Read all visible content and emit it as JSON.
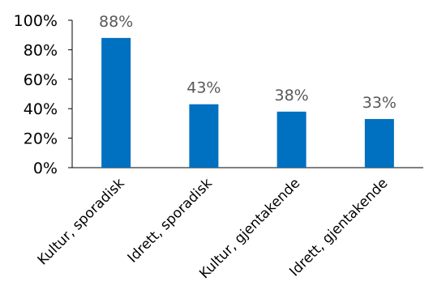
{
  "chart_data": {
    "type": "bar",
    "categories": [
      "Kultur, sporadisk",
      "Idrett, sporadisk",
      "Kultur, gjentakende",
      "Idrett, gjentakende"
    ],
    "values": [
      88,
      43,
      38,
      33
    ],
    "data_labels": [
      "88%",
      "43%",
      "38%",
      "33%"
    ],
    "value_format": "percent",
    "y_ticks": [
      0,
      20,
      40,
      60,
      80,
      100
    ],
    "y_tick_labels": [
      "0%",
      "20%",
      "40%",
      "60%",
      "80%",
      "100%"
    ],
    "ylim": [
      0,
      100
    ],
    "grid": false,
    "bar_color": "#0070C0",
    "axis_color": "#000000",
    "data_label_color": "#595959"
  }
}
